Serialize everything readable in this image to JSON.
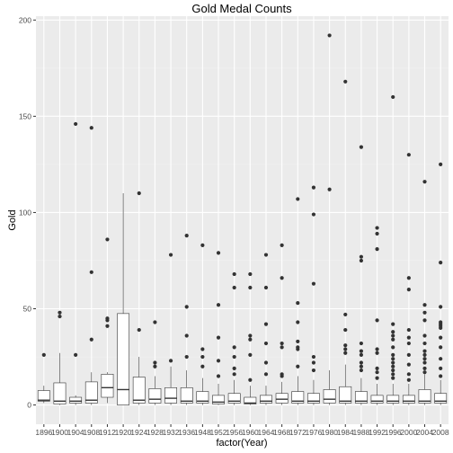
{
  "chart_data": {
    "type": "boxplot",
    "title": "Gold Medal Counts",
    "xlabel": "factor(Year)",
    "ylabel": "Gold",
    "ylim": [
      -10,
      202
    ],
    "y_ticks": [
      0,
      50,
      100,
      150,
      200
    ],
    "grid": true,
    "legend": "none",
    "colors": {
      "panel_background": "#ebebeb",
      "grid_major": "#ffffff",
      "grid_minor": "#f2f2f2",
      "box_fill": "#ffffff",
      "box_stroke": "#333333",
      "outlier": "#333333"
    },
    "categories": [
      "1896",
      "1900",
      "1904",
      "1908",
      "1912",
      "1920",
      "1924",
      "1928",
      "1932",
      "1936",
      "1948",
      "1952",
      "1956",
      "1960",
      "1964",
      "1968",
      "1972",
      "1976",
      "1980",
      "1984",
      "1988",
      "1992",
      "1996",
      "2000",
      "2004",
      "2008"
    ],
    "boxes": [
      {
        "min": 1,
        "q1": 2,
        "median": 2.5,
        "q3": 7.5,
        "max": 10,
        "outliers": [
          26
        ]
      },
      {
        "min": 0,
        "q1": 0.5,
        "median": 2,
        "q3": 11.5,
        "max": 27,
        "outliers": [
          46,
          48
        ]
      },
      {
        "min": 0,
        "q1": 1,
        "median": 2,
        "q3": 4,
        "max": 5,
        "outliers": [
          26,
          146
        ]
      },
      {
        "min": 0,
        "q1": 1,
        "median": 2.5,
        "q3": 12,
        "max": 17,
        "outliers": [
          34,
          69,
          144
        ]
      },
      {
        "min": 1,
        "q1": 4,
        "median": 9,
        "q3": 16,
        "max": 17,
        "outliers": [
          41,
          44,
          45,
          86
        ]
      },
      {
        "min": 0,
        "q1": 0,
        "median": 8,
        "q3": 47.5,
        "max": 110,
        "outliers": []
      },
      {
        "min": 0,
        "q1": 1,
        "median": 2.5,
        "q3": 14.5,
        "max": 25,
        "outliers": [
          39,
          110
        ]
      },
      {
        "min": 0,
        "q1": 1,
        "median": 3,
        "q3": 8.5,
        "max": 15,
        "outliers": [
          20,
          22,
          43
        ]
      },
      {
        "min": 0,
        "q1": 1,
        "median": 3.5,
        "q3": 9,
        "max": 20,
        "outliers": [
          23,
          78
        ]
      },
      {
        "min": 0,
        "q1": 1,
        "median": 2,
        "q3": 9,
        "max": 18,
        "outliers": [
          25,
          36,
          51,
          88
        ]
      },
      {
        "min": 0,
        "q1": 1,
        "median": 2,
        "q3": 7,
        "max": 14,
        "outliers": [
          20,
          25,
          29,
          83
        ]
      },
      {
        "min": 0,
        "q1": 0.5,
        "median": 1.5,
        "q3": 5,
        "max": 11,
        "outliers": [
          15,
          23,
          35,
          52,
          79
        ]
      },
      {
        "min": 0,
        "q1": 1,
        "median": 2,
        "q3": 6,
        "max": 13,
        "outliers": [
          16,
          19,
          25,
          30,
          61,
          68
        ]
      },
      {
        "min": 0,
        "q1": 0.5,
        "median": 1,
        "q3": 4,
        "max": 10,
        "outliers": [
          13,
          26,
          34,
          36,
          61,
          68
        ]
      },
      {
        "min": 0,
        "q1": 1,
        "median": 2,
        "q3": 5,
        "max": 10,
        "outliers": [
          16,
          22,
          32,
          42,
          61,
          78
        ]
      },
      {
        "min": 0,
        "q1": 1,
        "median": 3,
        "q3": 6,
        "max": 12,
        "outliers": [
          15,
          16,
          30,
          32,
          66,
          83
        ]
      },
      {
        "min": 0,
        "q1": 1,
        "median": 2,
        "q3": 7,
        "max": 15,
        "outliers": [
          20,
          29,
          30,
          33,
          43,
          53,
          107
        ]
      },
      {
        "min": 0,
        "q1": 1,
        "median": 2,
        "q3": 6,
        "max": 13,
        "outliers": [
          18,
          22,
          25,
          63,
          99,
          113
        ]
      },
      {
        "min": 0,
        "q1": 1,
        "median": 3,
        "q3": 8,
        "max": 18,
        "outliers": [
          112,
          192
        ]
      },
      {
        "min": 0,
        "q1": 1,
        "median": 2,
        "q3": 9.5,
        "max": 21,
        "outliers": [
          27,
          29,
          31,
          39,
          47,
          168
        ]
      },
      {
        "min": 0,
        "q1": 1,
        "median": 2,
        "q3": 7,
        "max": 14,
        "outliers": [
          18,
          20,
          22,
          26,
          28,
          32,
          75,
          77,
          134
        ]
      },
      {
        "min": 0,
        "q1": 1,
        "median": 2,
        "q3": 5,
        "max": 11,
        "outliers": [
          14,
          17,
          19,
          27,
          29,
          44,
          81,
          89,
          92
        ]
      },
      {
        "min": 0,
        "q1": 1,
        "median": 2,
        "q3": 5,
        "max": 11,
        "outliers": [
          14,
          16,
          18,
          20,
          22,
          24,
          26,
          30,
          34,
          36,
          38,
          42,
          160
        ]
      },
      {
        "min": 0,
        "q1": 1,
        "median": 2,
        "q3": 5,
        "max": 11,
        "outliers": [
          13,
          16,
          21,
          26,
          32,
          35,
          39,
          60,
          66,
          130
        ]
      },
      {
        "min": 0,
        "q1": 1,
        "median": 2,
        "q3": 8,
        "max": 16,
        "outliers": [
          17,
          19,
          22,
          24,
          26,
          28,
          32,
          36,
          44,
          48,
          52,
          116
        ]
      },
      {
        "min": 0,
        "q1": 1,
        "median": 2,
        "q3": 6,
        "max": 13,
        "outliers": [
          15,
          19,
          24,
          30,
          35,
          40,
          41,
          42,
          43,
          51,
          74,
          125
        ]
      }
    ]
  }
}
